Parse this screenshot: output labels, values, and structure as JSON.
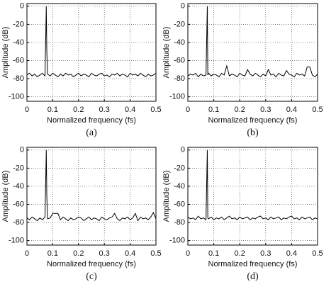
{
  "chart_data": [
    {
      "type": "line",
      "caption": "(a)",
      "x_label": "Normalized frequency (fs)",
      "y_label": "Amplitude (dB)",
      "color": "#000000",
      "grid": true,
      "xlim": [
        0,
        0.5
      ],
      "xticks": [
        0,
        0.1,
        0.2,
        0.3,
        0.4,
        0.5
      ],
      "ylim": [
        -105,
        3
      ],
      "yticks": [
        0,
        -20,
        -40,
        -60,
        -80,
        -100
      ],
      "x": [
        0,
        0.01,
        0.02,
        0.03,
        0.04,
        0.05,
        0.06,
        0.07,
        0.075,
        0.077,
        0.08,
        0.09,
        0.1,
        0.11,
        0.12,
        0.13,
        0.14,
        0.15,
        0.16,
        0.17,
        0.18,
        0.19,
        0.2,
        0.21,
        0.22,
        0.23,
        0.24,
        0.25,
        0.26,
        0.27,
        0.28,
        0.29,
        0.3,
        0.31,
        0.32,
        0.33,
        0.34,
        0.35,
        0.36,
        0.37,
        0.38,
        0.39,
        0.4,
        0.41,
        0.42,
        0.43,
        0.44,
        0.45,
        0.46,
        0.47,
        0.48,
        0.49,
        0.5
      ],
      "values": [
        -76,
        -74,
        -77,
        -75,
        -78,
        -76,
        -74,
        -77,
        0,
        -50,
        -75,
        -77,
        -74,
        -76,
        -78,
        -75,
        -77,
        -74,
        -76,
        -75,
        -78,
        -76,
        -74,
        -77,
        -75,
        -76,
        -78,
        -74,
        -76,
        -77,
        -75,
        -74,
        -77,
        -76,
        -78,
        -75,
        -76,
        -74,
        -77,
        -75,
        -76,
        -78,
        -74,
        -76,
        -75,
        -77,
        -74,
        -76,
        -78,
        -75,
        -77,
        -76,
        -74
      ]
    },
    {
      "type": "line",
      "caption": "(b)",
      "x_label": "Normalized frequency (fs)",
      "y_label": "Amplitude (dB)",
      "color": "#000000",
      "grid": true,
      "xlim": [
        0,
        0.5
      ],
      "xticks": [
        0,
        0.1,
        0.2,
        0.3,
        0.4,
        0.5
      ],
      "ylim": [
        -105,
        3
      ],
      "yticks": [
        0,
        -20,
        -40,
        -60,
        -80,
        -100
      ],
      "x": [
        0,
        0.01,
        0.02,
        0.03,
        0.04,
        0.05,
        0.06,
        0.07,
        0.075,
        0.077,
        0.08,
        0.09,
        0.1,
        0.11,
        0.12,
        0.13,
        0.14,
        0.15,
        0.16,
        0.17,
        0.18,
        0.19,
        0.2,
        0.21,
        0.22,
        0.23,
        0.24,
        0.25,
        0.26,
        0.27,
        0.28,
        0.29,
        0.3,
        0.31,
        0.32,
        0.33,
        0.34,
        0.35,
        0.36,
        0.37,
        0.38,
        0.39,
        0.4,
        0.41,
        0.42,
        0.43,
        0.44,
        0.45,
        0.46,
        0.47,
        0.48,
        0.49,
        0.5
      ],
      "values": [
        -77,
        -75,
        -76,
        -74,
        -78,
        -75,
        -77,
        -76,
        0,
        -76,
        -74,
        -77,
        -75,
        -76,
        -78,
        -74,
        -76,
        -66,
        -77,
        -75,
        -76,
        -78,
        -74,
        -76,
        -77,
        -70,
        -75,
        -77,
        -74,
        -76,
        -78,
        -75,
        -77,
        -70,
        -76,
        -75,
        -78,
        -74,
        -76,
        -77,
        -71,
        -75,
        -76,
        -78,
        -74,
        -76,
        -75,
        -77,
        -67,
        -67,
        -76,
        -78,
        -75
      ]
    },
    {
      "type": "line",
      "caption": "(c)",
      "x_label": "Normalized frequency (fs)",
      "y_label": "Amplitude (dB)",
      "color": "#000000",
      "grid": true,
      "xlim": [
        0,
        0.5
      ],
      "xticks": [
        0,
        0.1,
        0.2,
        0.3,
        0.4,
        0.5
      ],
      "ylim": [
        -105,
        3
      ],
      "yticks": [
        0,
        -20,
        -40,
        -60,
        -80,
        -100
      ],
      "x": [
        0,
        0.01,
        0.02,
        0.03,
        0.04,
        0.05,
        0.06,
        0.07,
        0.075,
        0.077,
        0.08,
        0.09,
        0.1,
        0.11,
        0.12,
        0.13,
        0.14,
        0.15,
        0.16,
        0.17,
        0.18,
        0.19,
        0.2,
        0.21,
        0.22,
        0.23,
        0.24,
        0.25,
        0.26,
        0.27,
        0.28,
        0.29,
        0.3,
        0.31,
        0.32,
        0.33,
        0.34,
        0.35,
        0.36,
        0.37,
        0.38,
        0.39,
        0.4,
        0.41,
        0.42,
        0.43,
        0.44,
        0.45,
        0.46,
        0.47,
        0.48,
        0.49,
        0.5
      ],
      "values": [
        -75,
        -77,
        -74,
        -76,
        -78,
        -75,
        -77,
        -74,
        0,
        -50,
        -76,
        -75,
        -70,
        -70,
        -70,
        -77,
        -74,
        -76,
        -78,
        -75,
        -77,
        -76,
        -74,
        -75,
        -78,
        -76,
        -74,
        -77,
        -75,
        -76,
        -78,
        -74,
        -76,
        -77,
        -75,
        -74,
        -70,
        -76,
        -78,
        -75,
        -76,
        -74,
        -77,
        -75,
        -70,
        -78,
        -74,
        -76,
        -75,
        -77,
        -74,
        -69,
        -76
      ]
    },
    {
      "type": "line",
      "caption": "(d)",
      "x_label": "Normalized frequency (fs)",
      "y_label": "Amplitude (dB)",
      "color": "#000000",
      "grid": true,
      "xlim": [
        0,
        0.5
      ],
      "xticks": [
        0,
        0.1,
        0.2,
        0.3,
        0.4,
        0.5
      ],
      "ylim": [
        -105,
        3
      ],
      "yticks": [
        0,
        -20,
        -40,
        -60,
        -80,
        -100
      ],
      "x": [
        0,
        0.01,
        0.02,
        0.03,
        0.04,
        0.05,
        0.06,
        0.07,
        0.075,
        0.077,
        0.08,
        0.09,
        0.1,
        0.11,
        0.12,
        0.13,
        0.14,
        0.15,
        0.16,
        0.17,
        0.18,
        0.19,
        0.2,
        0.21,
        0.22,
        0.23,
        0.24,
        0.25,
        0.26,
        0.27,
        0.28,
        0.29,
        0.3,
        0.31,
        0.32,
        0.33,
        0.34,
        0.35,
        0.36,
        0.37,
        0.38,
        0.39,
        0.4,
        0.41,
        0.42,
        0.43,
        0.44,
        0.45,
        0.46,
        0.47,
        0.48,
        0.49,
        0.5
      ],
      "values": [
        -74,
        -76,
        -75,
        -77,
        -73,
        -76,
        -75,
        -77,
        0,
        -75,
        -76,
        -74,
        -77,
        -75,
        -76,
        -74,
        -77,
        -75,
        -73,
        -76,
        -75,
        -77,
        -74,
        -76,
        -75,
        -74,
        -77,
        -75,
        -76,
        -74,
        -73,
        -76,
        -75,
        -77,
        -74,
        -76,
        -75,
        -74,
        -77,
        -75,
        -76,
        -74,
        -73,
        -76,
        -75,
        -77,
        -74,
        -76,
        -75,
        -74,
        -77,
        -75,
        -76
      ]
    }
  ]
}
